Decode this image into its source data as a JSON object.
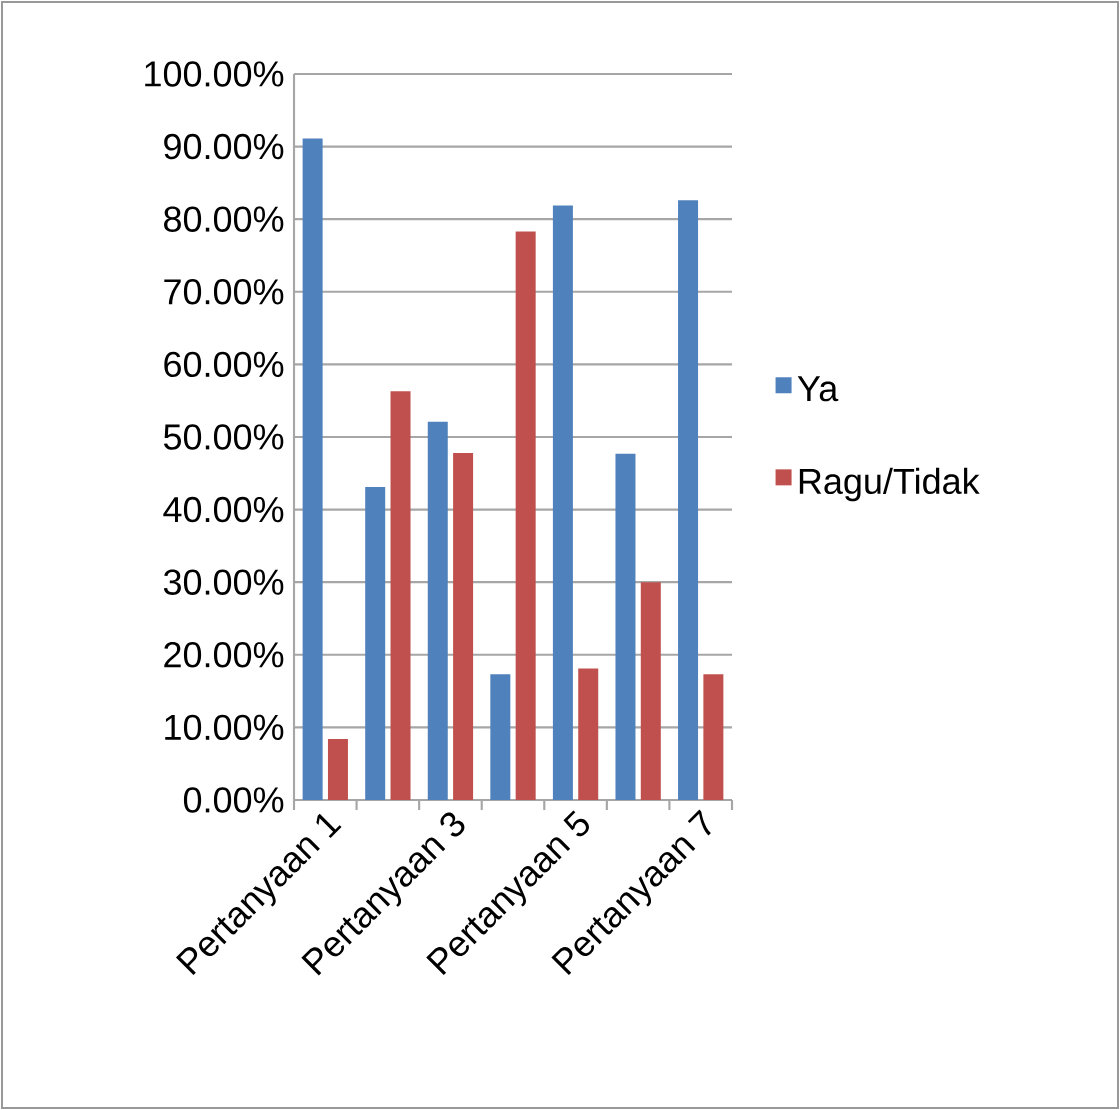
{
  "chart_data": {
    "type": "bar",
    "categories": [
      "Pertanyaan 1",
      null,
      "Pertanyaan 3",
      null,
      "Pertanyaan 5",
      null,
      "Pertanyaan 7"
    ],
    "series": [
      {
        "name": "Ya",
        "color": "#4f81bd",
        "values": [
          91.1,
          43.1,
          52.1,
          17.3,
          81.9,
          47.7,
          82.6
        ]
      },
      {
        "name": "Ragu/Tidak",
        "color": "#c0504d",
        "values": [
          8.4,
          56.3,
          47.8,
          78.3,
          18.1,
          30.0,
          17.3
        ]
      }
    ],
    "ylim": [
      0,
      100
    ],
    "yticks": [
      {
        "value": 0,
        "label": "0.00%"
      },
      {
        "value": 10,
        "label": "10.00%"
      },
      {
        "value": 20,
        "label": "20.00%"
      },
      {
        "value": 30,
        "label": "30.00%"
      },
      {
        "value": 40,
        "label": "40.00%"
      },
      {
        "value": 50,
        "label": "50.00%"
      },
      {
        "value": 60,
        "label": "60.00%"
      },
      {
        "value": 70,
        "label": "70.00%"
      },
      {
        "value": 80,
        "label": "80.00%"
      },
      {
        "value": 90,
        "label": "90.00%"
      },
      {
        "value": 100,
        "label": "100.00%"
      }
    ],
    "grid": "y",
    "legend": "right"
  }
}
